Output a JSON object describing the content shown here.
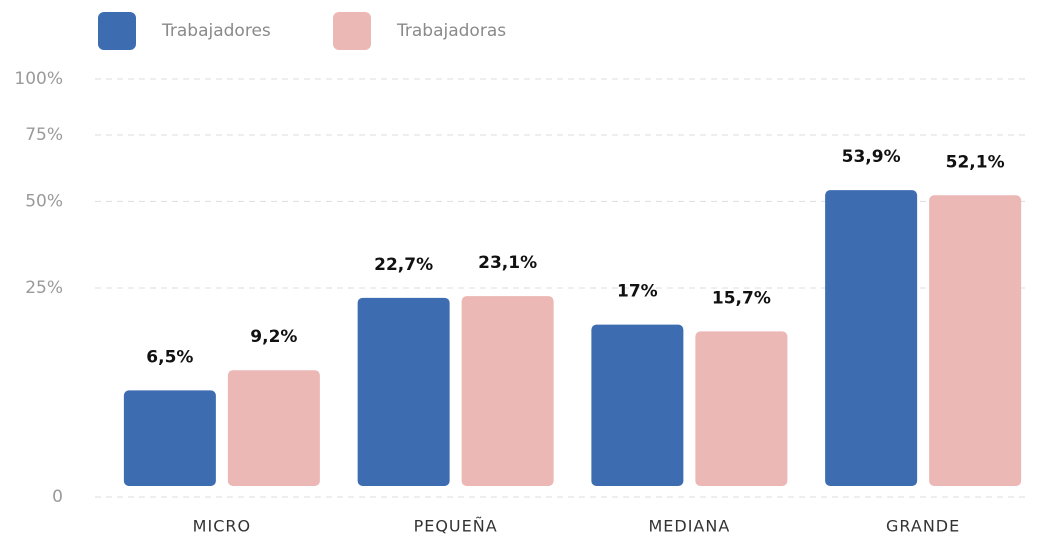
{
  "chart_data": {
    "type": "bar",
    "categories": [
      "MICRO",
      "PEQUEÑA",
      "MEDIANA",
      "GRANDE"
    ],
    "series": [
      {
        "name": "Trabajadores",
        "color": "#3d6cb0",
        "values": [
          6.5,
          22.7,
          17,
          53.9
        ],
        "value_labels": [
          "6,5%",
          "22,7%",
          "17%",
          "53,9%"
        ]
      },
      {
        "name": "Trabajadoras",
        "color": "#ebb8b5",
        "values": [
          9.2,
          23.1,
          15.7,
          52.1
        ],
        "value_labels": [
          "9,2%",
          "23,1%",
          "15,7%",
          "52,1%"
        ]
      }
    ],
    "ylim": [
      0,
      100
    ],
    "yticks": [
      0,
      {
        "value": 25,
        "label": "25%"
      },
      {
        "value": 50,
        "label": "50%"
      },
      {
        "value": 75,
        "label": "75%"
      },
      {
        "value": 100,
        "label": "100%"
      }
    ],
    "yscale": "sqrt",
    "grid": true,
    "legend": "top-left"
  }
}
